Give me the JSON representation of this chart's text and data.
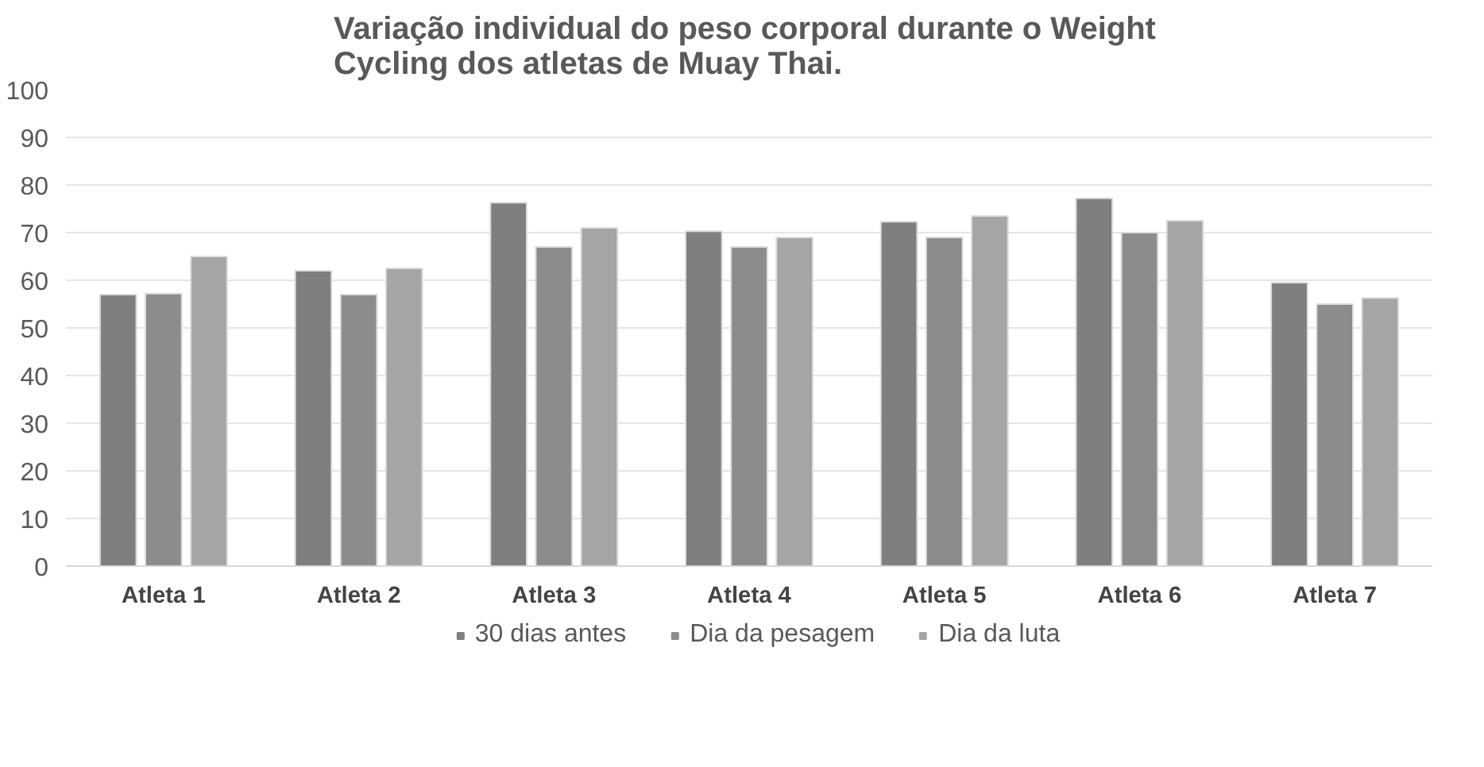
{
  "chart_data": {
    "type": "bar",
    "title": "Variação individual do peso corporal durante o  Weight Cycling dos atletas de Muay Thai.",
    "categories": [
      "Atleta 1",
      "Atleta 2",
      "Atleta 3",
      "Atleta 4",
      "Atleta 5",
      "Atleta 6",
      "Atleta 7"
    ],
    "series": [
      {
        "name": "30 dias antes",
        "color": "#7f7f7f",
        "values": [
          57,
          62,
          76.3,
          70.3,
          72.3,
          77.2,
          59.5
        ]
      },
      {
        "name": "Dia da pesagem",
        "color": "#8c8c8c",
        "values": [
          57.2,
          57,
          67,
          67,
          69,
          70,
          55
        ]
      },
      {
        "name": "Dia da luta",
        "color": "#a5a5a5",
        "values": [
          65,
          62.5,
          71,
          69,
          73.5,
          72.5,
          56.3
        ]
      }
    ],
    "ylim": [
      0,
      100
    ],
    "yticks": [
      0,
      10,
      20,
      30,
      40,
      50,
      60,
      70,
      80,
      90,
      100
    ],
    "grid": "y",
    "legend": "bottom"
  }
}
